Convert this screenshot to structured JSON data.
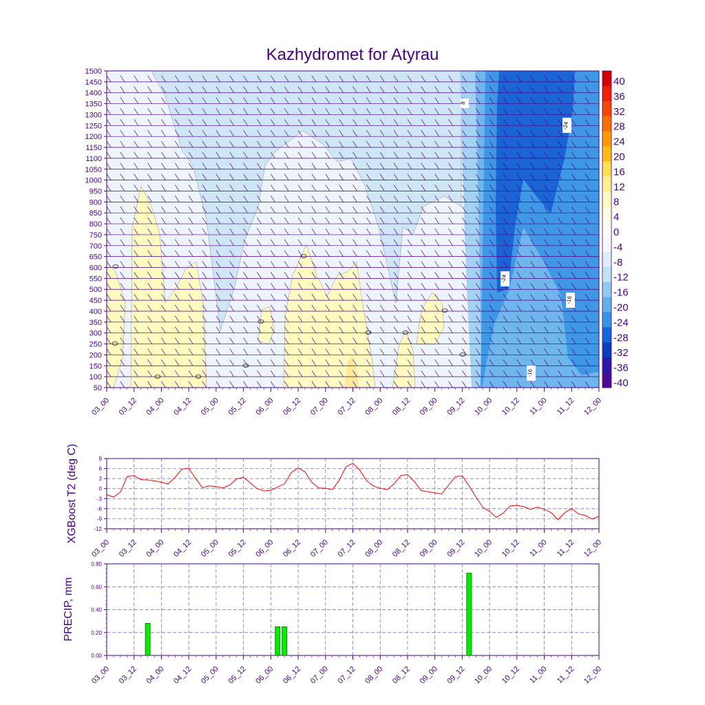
{
  "title": "Kazhydromet for Atyrau",
  "colors": {
    "axis": "#4b0082",
    "t2_line": "#ff0000",
    "precip_bar": "#00ee00",
    "precip_edge": "#006600",
    "grid": "#6a5acd"
  },
  "time_labels": [
    "03_00",
    "03_12",
    "04_00",
    "04_12",
    "05_00",
    "05_12",
    "06_00",
    "06_12",
    "07_00",
    "07_12",
    "08_00",
    "08_12",
    "09_00",
    "09_12",
    "10_00",
    "10_12",
    "11_00",
    "11_12",
    "12_00"
  ],
  "chart_data": [
    {
      "type": "heatmap",
      "title": "Kazhydromet for Atyrau",
      "x_categories": [
        "03_00",
        "03_12",
        "04_00",
        "04_12",
        "05_00",
        "05_12",
        "06_00",
        "06_12",
        "07_00",
        "07_12",
        "08_00",
        "08_12",
        "09_00",
        "09_12",
        "10_00",
        "10_12",
        "11_00",
        "11_12",
        "12_00"
      ],
      "y_levels": [
        50,
        100,
        150,
        200,
        250,
        300,
        350,
        400,
        450,
        500,
        550,
        600,
        650,
        700,
        750,
        800,
        850,
        900,
        950,
        1000,
        1050,
        1100,
        1150,
        1200,
        1250,
        1300,
        1350,
        1400,
        1450,
        1500
      ],
      "colorbar_levels": [
        40,
        36,
        32,
        28,
        24,
        20,
        16,
        12,
        8,
        4,
        0,
        -4,
        -8,
        -12,
        -16,
        -20,
        -24,
        -28,
        -32,
        -36,
        -40
      ],
      "colorbar_colors": [
        "#d40000",
        "#ee2000",
        "#f84800",
        "#fb7000",
        "#fc9a00",
        "#fdbd10",
        "#fee050",
        "#fef08c",
        "#fffac0",
        "#fffce0",
        "#fdfef4",
        "#f2f8fe",
        "#ddeefa",
        "#bfe3f6",
        "#8fcbf0",
        "#5fb1ec",
        "#3592e6",
        "#1266d8",
        "#0a3ec0",
        "#2a1aa6",
        "#4e0a8e"
      ],
      "contour_labels": [
        "8",
        "-24",
        "-24",
        "-16",
        "-16"
      ],
      "ylim": [
        50,
        1500
      ]
    },
    {
      "type": "line",
      "ylabel": "XGBoost T2 (deg C)",
      "ylim": [
        -12,
        9
      ],
      "y_ticks": [
        9,
        6,
        3,
        0,
        -3,
        -6,
        -9,
        -12
      ],
      "x_categories": [
        "03_00",
        "03_12",
        "04_00",
        "04_12",
        "05_00",
        "05_12",
        "06_00",
        "06_12",
        "07_00",
        "07_12",
        "08_00",
        "08_12",
        "09_00",
        "09_12",
        "10_00",
        "10_12",
        "11_00",
        "11_12",
        "12_00"
      ],
      "series": [
        {
          "x": [
            0,
            0.25,
            0.5,
            0.75,
            1,
            1.25,
            1.5,
            1.75,
            2,
            2.25,
            2.5,
            2.75,
            3,
            3.25,
            3.5,
            3.75,
            4,
            4.25,
            4.5,
            4.75,
            5,
            5.25,
            5.5,
            5.75,
            6,
            6.25,
            6.5,
            6.75,
            7,
            7.25,
            7.5,
            7.75,
            8,
            8.25,
            8.5,
            8.75,
            9,
            9.25,
            9.5,
            9.75,
            10,
            10.25,
            10.5,
            10.75,
            11,
            11.25,
            11.5,
            11.75,
            12,
            12.25,
            12.5,
            12.75,
            13,
            13.25,
            13.5,
            13.75,
            14,
            14.25,
            14.5,
            14.75,
            15,
            15.25,
            15.5,
            15.75,
            16,
            16.25,
            16.5,
            16.75,
            17,
            17.25,
            17.5,
            17.75,
            18
          ],
          "values": [
            -1.8,
            -2.5,
            -1.0,
            3.6,
            3.9,
            2.7,
            2.6,
            2.3,
            1.9,
            1.4,
            3.4,
            5.8,
            6.1,
            3.0,
            0.3,
            0.8,
            0.6,
            0.2,
            1.1,
            2.9,
            3.4,
            1.7,
            0.0,
            -0.7,
            -0.5,
            0.5,
            1.4,
            4.8,
            6.2,
            5.0,
            1.9,
            0.2,
            0.1,
            -0.3,
            2.5,
            6.6,
            7.6,
            5.6,
            2.4,
            0.8,
            0.1,
            -0.3,
            1.4,
            3.9,
            4.2,
            2.1,
            -0.6,
            -0.9,
            -1.3,
            -1.6,
            1.1,
            3.6,
            3.8,
            0.8,
            -2.5,
            -5.6,
            -6.8,
            -8.6,
            -7.3,
            -5.2,
            -5.0,
            -5.4,
            -6.2,
            -5.5,
            -6.2,
            -7.2,
            -9.3,
            -7.2,
            -5.9,
            -7.6,
            -8.0,
            -9.1,
            -8.3
          ]
        }
      ]
    },
    {
      "type": "bar",
      "ylabel": "PRECIP, mm",
      "ylim": [
        0,
        0.8
      ],
      "y_ticks": [
        "0.80",
        "0.60",
        "0.40",
        "0.20",
        "0.00"
      ],
      "x_categories": [
        "03_00",
        "03_12",
        "04_00",
        "04_12",
        "05_00",
        "05_12",
        "06_00",
        "06_12",
        "07_00",
        "07_12",
        "08_00",
        "08_12",
        "09_00",
        "09_12",
        "10_00",
        "10_12",
        "11_00",
        "11_12",
        "12_00"
      ],
      "bars": [
        {
          "x": 1.5,
          "value": 0.28
        },
        {
          "x": 6.25,
          "value": 0.25
        },
        {
          "x": 6.5,
          "value": 0.25
        },
        {
          "x": 13.25,
          "value": 0.72
        }
      ]
    }
  ]
}
